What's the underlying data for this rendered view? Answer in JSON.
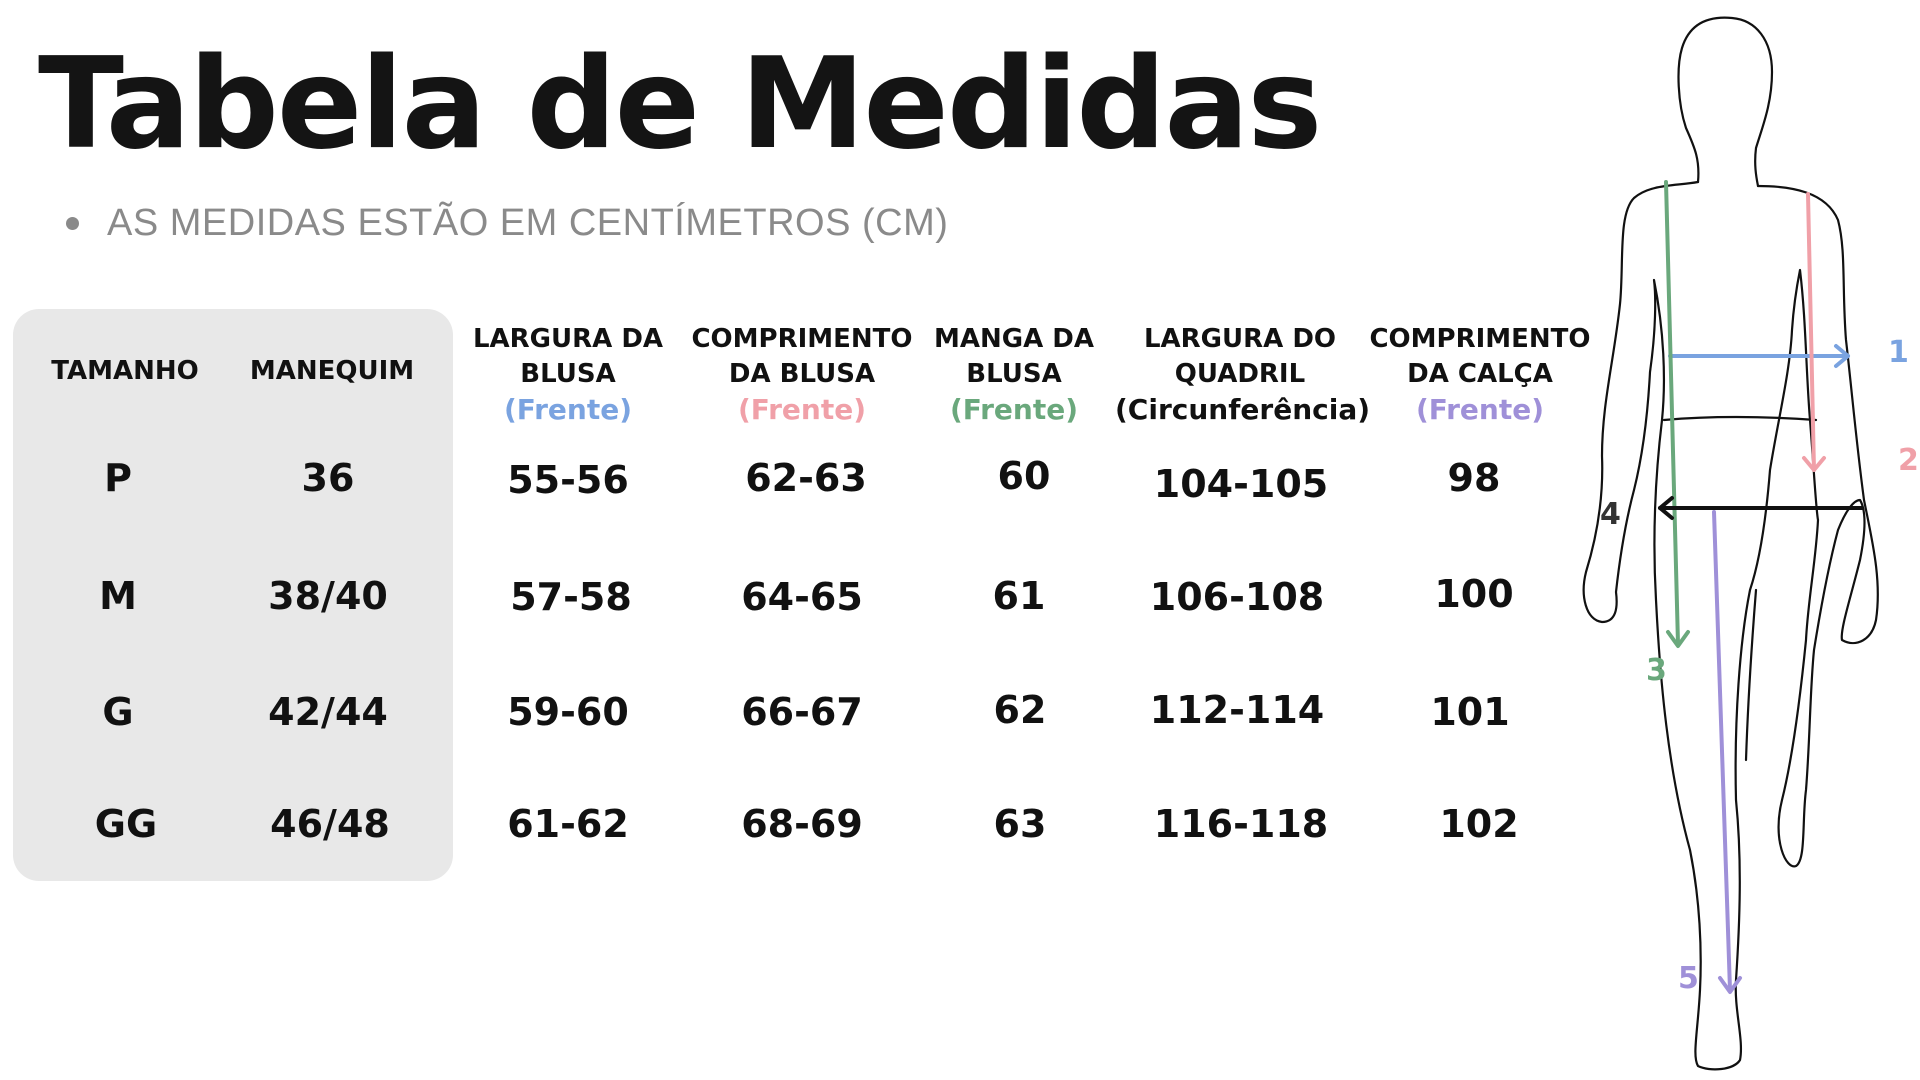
{
  "title": "Tabela de Medidas",
  "note": "AS MEDIDAS ESTÃO EM CENTÍMETROS (CM)",
  "colors": {
    "blue": "#7aa3e0",
    "pink": "#f0a0a8",
    "green": "#6aa87c",
    "purple": "#9f90d8",
    "panel": "#e8e8e8"
  },
  "headers": [
    {
      "line1": "TAMANHO",
      "line2": "",
      "sub": ""
    },
    {
      "line1": "MANEQUIM",
      "line2": "",
      "sub": ""
    },
    {
      "line1": "LARGURA DA",
      "line2": "BLUSA",
      "sub": "(Frente)"
    },
    {
      "line1": "COMPRIMENTO",
      "line2": "DA BLUSA",
      "sub": "(Frente)"
    },
    {
      "line1": "MANGA DA",
      "line2": "BLUSA",
      "sub": "(Frente)"
    },
    {
      "line1": "LARGURA DO",
      "line2": "QUADRIL",
      "sub": "(Circunferência)"
    },
    {
      "line1": "COMPRIMENTO",
      "line2": "DA CALÇA",
      "sub": "(Frente)"
    }
  ],
  "rows": [
    [
      "P",
      "36",
      "55-56",
      "62-63",
      "60",
      "104-105",
      "98"
    ],
    [
      "M",
      "38/40",
      "57-58",
      "64-65",
      "61",
      "106-108",
      "100"
    ],
    [
      "G",
      "42/44",
      "59-60",
      "66-67",
      "62",
      "112-114",
      "101"
    ],
    [
      "GG",
      "46/48",
      "61-62",
      "68-69",
      "63",
      "116-118",
      "102"
    ]
  ],
  "figure_labels": [
    "1",
    "2",
    "3",
    "4",
    "5"
  ]
}
